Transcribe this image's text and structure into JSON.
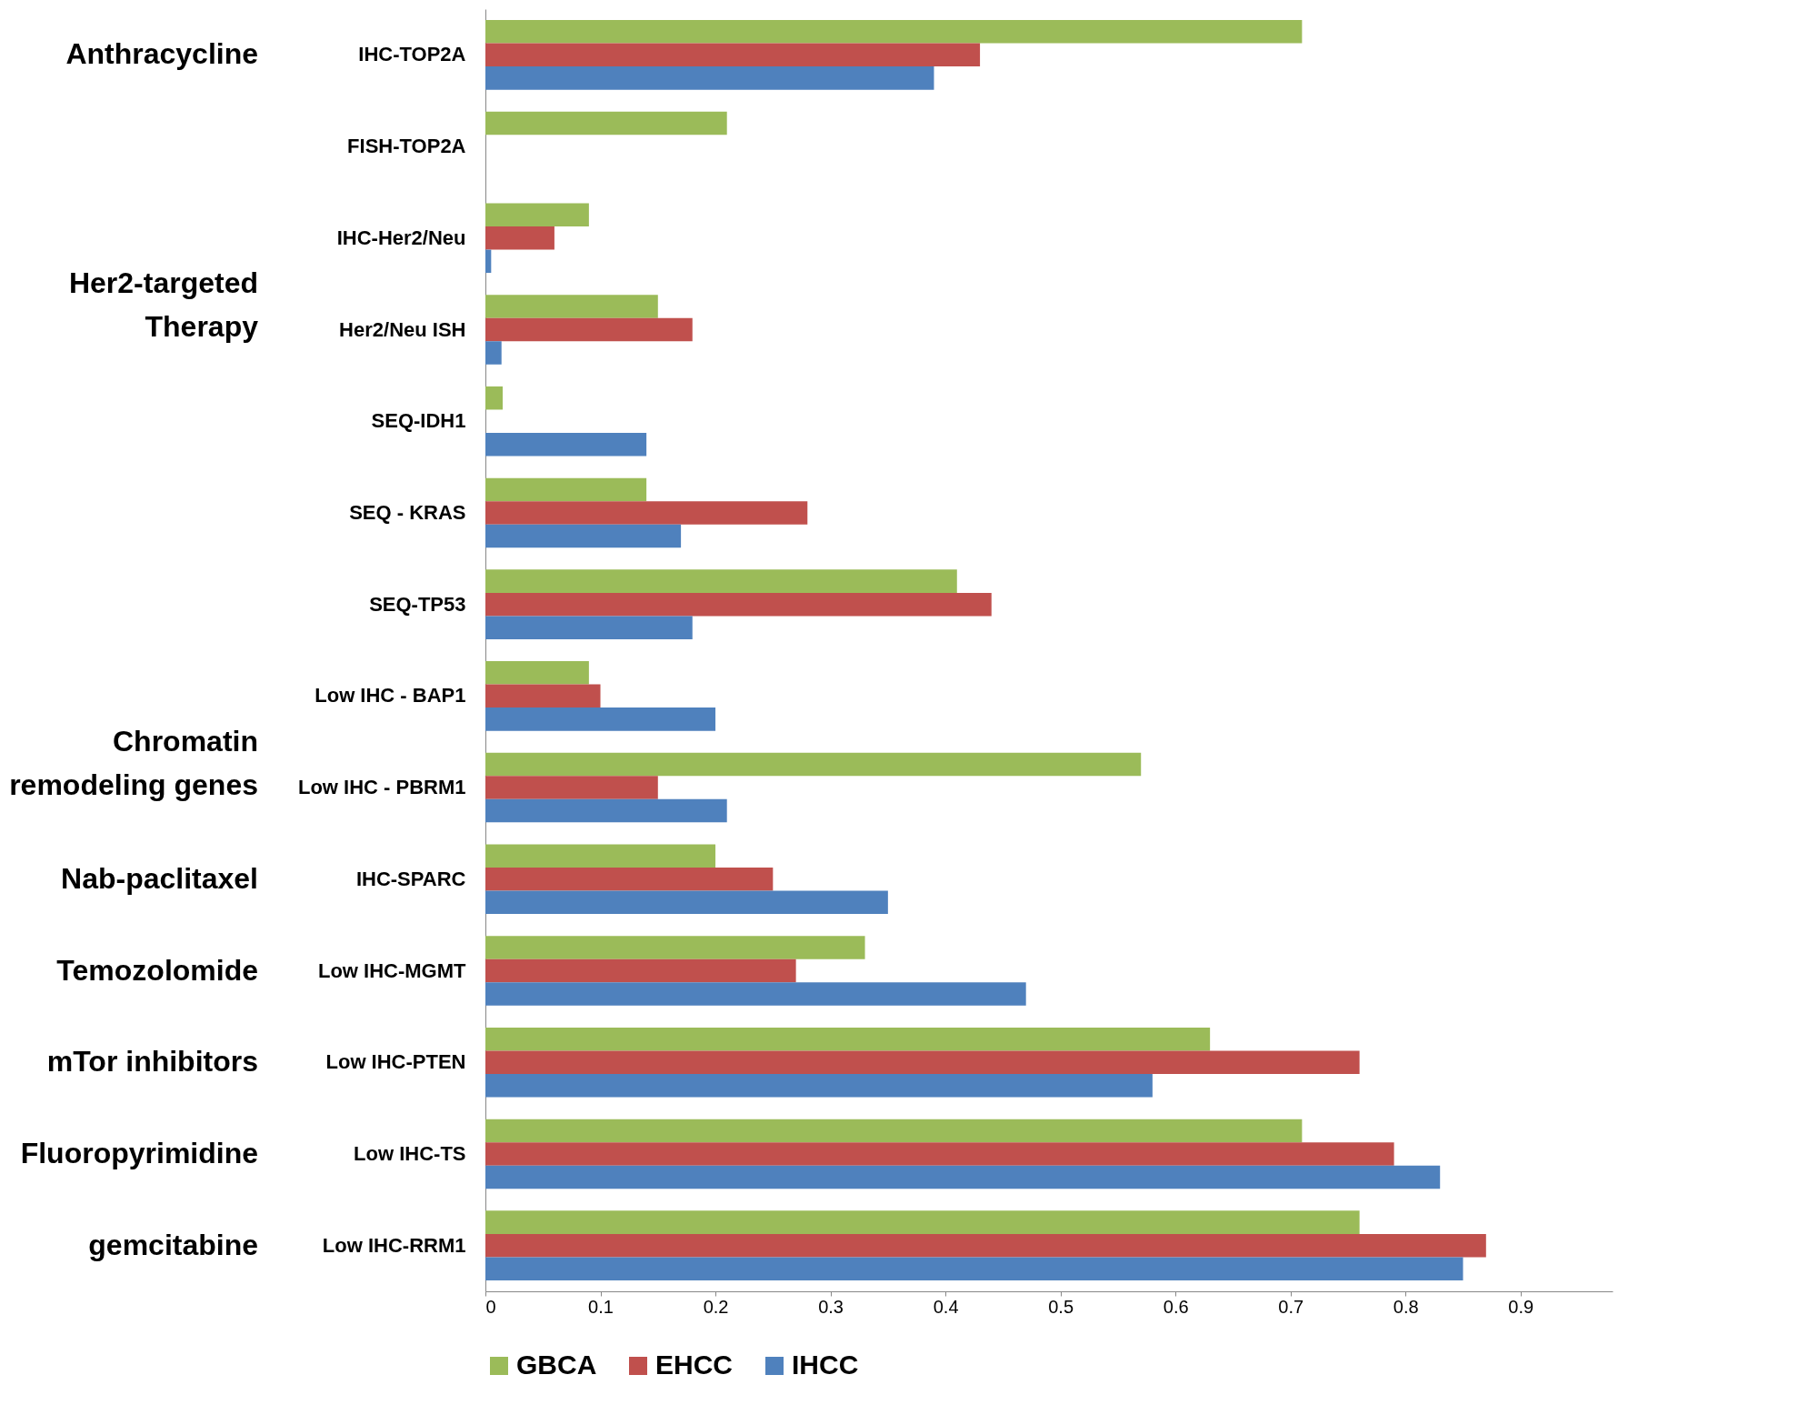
{
  "chart_data": {
    "type": "bar",
    "orientation": "horizontal",
    "categories": [
      "IHC-TOP2A",
      "FISH-TOP2A",
      "IHC-Her2/Neu",
      "Her2/Neu ISH",
      "SEQ-IDH1",
      "SEQ - KRAS",
      "SEQ-TP53",
      "Low IHC - BAP1",
      "Low IHC - PBRM1",
      "IHC-SPARC",
      "Low IHC-MGMT",
      "Low IHC-PTEN",
      "Low IHC-TS",
      "Low IHC-RRM1"
    ],
    "series": [
      {
        "name": "GBCA",
        "color": "#9bbb59",
        "values": [
          0.71,
          0.21,
          0.09,
          0.15,
          0.015,
          0.14,
          0.41,
          0.09,
          0.57,
          0.2,
          0.33,
          0.63,
          0.71,
          0.76
        ]
      },
      {
        "name": "EHCC",
        "color": "#c0504d",
        "values": [
          0.43,
          null,
          0.06,
          0.18,
          null,
          0.28,
          0.44,
          0.1,
          0.15,
          0.25,
          0.27,
          0.76,
          0.79,
          0.87
        ]
      },
      {
        "name": "IHCC",
        "color": "#4f81bd",
        "values": [
          0.39,
          null,
          0.005,
          0.014,
          0.14,
          0.17,
          0.18,
          0.2,
          0.21,
          0.35,
          0.47,
          0.58,
          0.83,
          0.85
        ]
      }
    ],
    "xlim": [
      0,
      0.98
    ],
    "xticks": [
      0,
      0.1,
      0.2,
      0.3,
      0.4,
      0.5,
      0.6,
      0.7,
      0.8,
      0.9
    ],
    "grid": false,
    "legend": "bottom",
    "annotations": [
      "Anthracycline",
      "Her2-targeted\nTherapy",
      "Chromatin\nremodeling genes",
      "Nab-paclitaxel",
      "Temozolomide",
      "mTor inhibitors",
      "Fluoropyrimidine",
      "gemcitabine"
    ]
  }
}
